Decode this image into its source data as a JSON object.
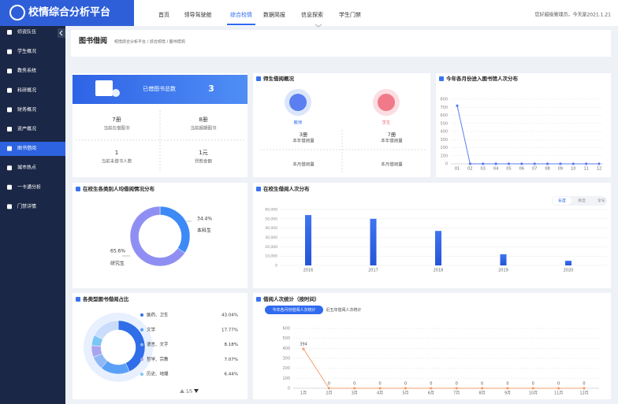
{
  "header": {
    "logo": "校情综合分析平台",
    "nav": [
      "首页",
      "领导驾驶舱",
      "综合校情",
      "数据简报",
      "信息探索",
      "学生门禁"
    ],
    "greeting": "您好超级管理员，今天是2021.1.21"
  },
  "sidebar": [
    "师资队伍",
    "学生概况",
    "教务系统",
    "科研概况",
    "财务概况",
    "资产概况",
    "图书借阅",
    "城市热点",
    "一卡通分析",
    "门禁详情"
  ],
  "page": {
    "title": "图书借阅",
    "breadcrumb": "校情综合分析平台 / 综合校情 / 图书借阅"
  },
  "summary": {
    "banner_label": "已借图书总数",
    "banner_value": "3",
    "stats": [
      {
        "value": "7册",
        "label": "当前在借图书"
      },
      {
        "value": "8册",
        "label": "当前超期图书"
      },
      {
        "value": "1",
        "label": "当前未借书人数"
      },
      {
        "value": "1元",
        "label": "罚款金额"
      }
    ]
  },
  "borrow_overview": {
    "title": "师生借阅概况",
    "groups": [
      {
        "name": "教师",
        "year_value": "3册",
        "year_label": "本年借阅量",
        "month_label": "本月借阅量"
      },
      {
        "name": "学生",
        "year_value": "7册",
        "year_label": "本年借阅量",
        "month_label": "本月借阅量"
      }
    ]
  },
  "chart_data": [
    {
      "type": "line",
      "title": "今年各月份进入图书馆人次分布",
      "categories": [
        "01",
        "02",
        "03",
        "04",
        "05",
        "06",
        "07",
        "08",
        "09",
        "10",
        "11",
        "12"
      ],
      "values": [
        720,
        0,
        0,
        0,
        0,
        0,
        0,
        0,
        0,
        0,
        0,
        0
      ],
      "color": "#5b7bf0",
      "ylim": [
        0,
        800
      ],
      "yticks": [
        0,
        100,
        200,
        300,
        400,
        500,
        600,
        700,
        800
      ],
      "grid": true,
      "data_labels": false
    },
    {
      "type": "pie",
      "title": "在校生各类别人均借阅情况分布",
      "categories": [
        "本科生",
        "研究生"
      ],
      "values": [
        34.4,
        65.6
      ],
      "value_labels": [
        "34.4%",
        "65.6%"
      ],
      "colors": [
        "#3d8af7",
        "#8f8ff3"
      ]
    },
    {
      "type": "bar",
      "title": "在校生借阅人次分布",
      "tabs": [
        "年度",
        "季度",
        "学年"
      ],
      "categories": [
        "2016",
        "2017",
        "2018",
        "2019",
        "2020"
      ],
      "values": [
        54000,
        50000,
        37000,
        12000,
        5000
      ],
      "color": "#3466ee",
      "ylim": [
        0,
        60000
      ],
      "yticks": [
        0,
        {
          "value": 10000,
          "label": "10,000"
        },
        {
          "value": 20000,
          "label": "20,000"
        },
        {
          "value": 30000,
          "label": "30,000"
        },
        {
          "value": 40000,
          "label": "40,000"
        },
        {
          "value": 50000,
          "label": "50,000"
        },
        {
          "value": 60000,
          "label": "60,000"
        }
      ],
      "grid": true
    },
    {
      "type": "pie",
      "title": "各类型图书借阅占比",
      "categories": [
        "医药、卫生",
        "文学",
        "语言、文字",
        "哲学、宗教",
        "历史、地理"
      ],
      "values": [
        43.04,
        17.77,
        8.18,
        7.07,
        6.44
      ],
      "value_labels": [
        "43.04%",
        "17.77%",
        "8.18%",
        "7.07%",
        "6.44%"
      ],
      "colors": [
        "#2f6ee8",
        "#5aa0f7",
        "#8fb8f5",
        "#a9a4f0",
        "#7cc6f4"
      ],
      "pager": "1/5"
    },
    {
      "type": "line",
      "title": "借阅人次统计（按时间）",
      "tabs": [
        "今年各月份借阅人次统计",
        "近五年借阅人次统计"
      ],
      "categories": [
        "1月",
        "2月",
        "3月",
        "4月",
        "5月",
        "6月",
        "7月",
        "8月",
        "9月",
        "10月",
        "11月",
        "12月"
      ],
      "values": [
        394,
        0,
        0,
        0,
        0,
        0,
        0,
        0,
        0,
        0,
        0,
        0
      ],
      "color": "#f4a070",
      "ylim": [
        0,
        600
      ],
      "yticks": [
        0,
        100,
        200,
        300,
        400,
        500,
        600
      ],
      "grid": true,
      "data_labels": true
    }
  ]
}
